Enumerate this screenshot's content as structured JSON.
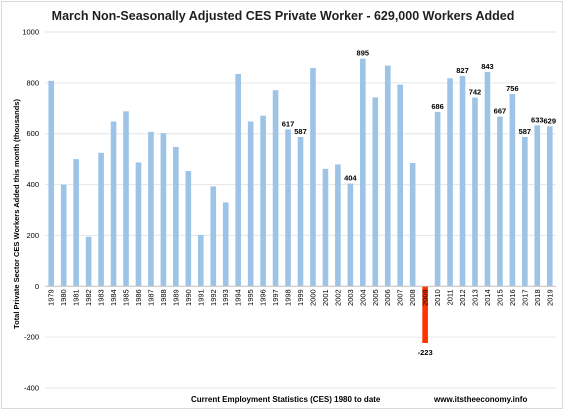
{
  "chart_data": {
    "type": "bar",
    "title": "March Non-Seasonally Adjusted CES Private Worker - 629,000 Workers Added",
    "ylabel": "Total Private Sector CES Workers Added this month (thousands)",
    "xlabel": "",
    "ylim": [
      -400,
      1000
    ],
    "yticks": [
      "1000",
      "800",
      "600",
      "400",
      "200",
      "0",
      "-200",
      "-400"
    ],
    "grid": true,
    "legend": "none",
    "colors": {
      "positive": "#9dc3e6",
      "negative": "#ff3300"
    },
    "categories": [
      "1979",
      "1980",
      "1981",
      "1982",
      "1983",
      "1984",
      "1985",
      "1986",
      "1987",
      "1988",
      "1989",
      "1990",
      "1991",
      "1992",
      "1993",
      "1994",
      "1995",
      "1996",
      "1997",
      "1998",
      "1999",
      "2000",
      "2001",
      "2002",
      "2003",
      "2004",
      "2005",
      "2006",
      "2007",
      "2008",
      "2009",
      "2010",
      "2011",
      "2012",
      "2013",
      "2014",
      "2015",
      "2016",
      "2017",
      "2018",
      "2019"
    ],
    "values": [
      808,
      400,
      500,
      195,
      525,
      648,
      688,
      487,
      607,
      602,
      548,
      453,
      202,
      393,
      330,
      835,
      648,
      671,
      771,
      617,
      587,
      858,
      462,
      479,
      404,
      895,
      743,
      868,
      793,
      485,
      -223,
      686,
      818,
      827,
      742,
      843,
      667,
      756,
      587,
      633,
      629
    ],
    "data_labels": [
      {
        "category": "1998",
        "text": "617"
      },
      {
        "category": "1999",
        "text": "587"
      },
      {
        "category": "2003",
        "text": "404"
      },
      {
        "category": "2004",
        "text": "895"
      },
      {
        "category": "2009",
        "text": "-223"
      },
      {
        "category": "2010",
        "text": "686"
      },
      {
        "category": "2012",
        "text": "827"
      },
      {
        "category": "2013",
        "text": "742"
      },
      {
        "category": "2014",
        "text": "843"
      },
      {
        "category": "2015",
        "text": "667"
      },
      {
        "category": "2016",
        "text": "756"
      },
      {
        "category": "2017",
        "text": "587"
      },
      {
        "category": "2018",
        "text": "633"
      },
      {
        "category": "2019",
        "text": "629"
      }
    ]
  },
  "footer": {
    "source": "Current Employment Statistics (CES) 1980 to date",
    "website": "www.itstheeconomy.info"
  }
}
